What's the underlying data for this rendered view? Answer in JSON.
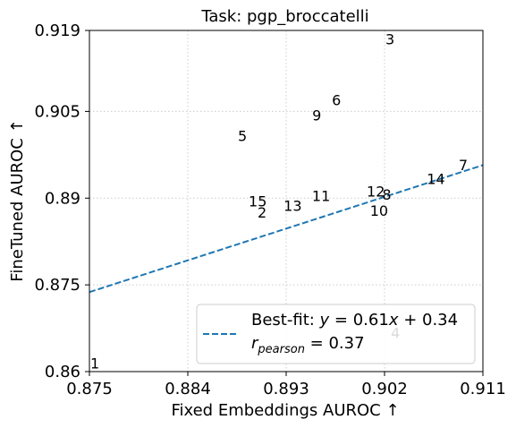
{
  "chart_data": {
    "type": "scatter",
    "title": "Task: pgp_broccatelli",
    "xlabel": "Fixed Embeddings AUROC ↑",
    "ylabel": "FineTuned AUROC ↑",
    "xlim": [
      0.875,
      0.911
    ],
    "ylim": [
      0.86,
      0.919
    ],
    "xticks": [
      0.875,
      0.884,
      0.893,
      0.902,
      0.911
    ],
    "yticks": [
      0.86,
      0.875,
      0.89,
      0.905,
      0.919
    ],
    "xtick_labels": [
      "0.875",
      "0.884",
      "0.893",
      "0.902",
      "0.911"
    ],
    "ytick_labels": [
      "0.86",
      "0.875",
      "0.89",
      "0.905",
      "0.919"
    ],
    "grid": true,
    "points": [
      {
        "label": "1",
        "x": 0.8755,
        "y": 0.8615
      },
      {
        "label": "2",
        "x": 0.8908,
        "y": 0.8876
      },
      {
        "label": "3",
        "x": 0.9025,
        "y": 0.9175
      },
      {
        "label": "4",
        "x": 0.903,
        "y": 0.8667
      },
      {
        "label": "5",
        "x": 0.889,
        "y": 0.9008
      },
      {
        "label": "6",
        "x": 0.8976,
        "y": 0.907
      },
      {
        "label": "7",
        "x": 0.9092,
        "y": 0.8958
      },
      {
        "label": "8",
        "x": 0.9022,
        "y": 0.8907
      },
      {
        "label": "9",
        "x": 0.8958,
        "y": 0.9044
      },
      {
        "label": "10",
        "x": 0.9015,
        "y": 0.8879
      },
      {
        "label": "11",
        "x": 0.8962,
        "y": 0.8904
      },
      {
        "label": "12",
        "x": 0.9012,
        "y": 0.8912
      },
      {
        "label": "13",
        "x": 0.8936,
        "y": 0.8887
      },
      {
        "label": "14",
        "x": 0.9067,
        "y": 0.8934
      },
      {
        "label": "15",
        "x": 0.8904,
        "y": 0.8895
      }
    ],
    "fit_line": {
      "slope": 0.61,
      "intercept": 0.34,
      "color": "#1f77b4",
      "style": "dashed"
    },
    "legend": {
      "placement": "lower-right",
      "line1": "Best-fit: y = 0.61x + 0.34",
      "line2": "r_pearson = 0.37"
    }
  }
}
